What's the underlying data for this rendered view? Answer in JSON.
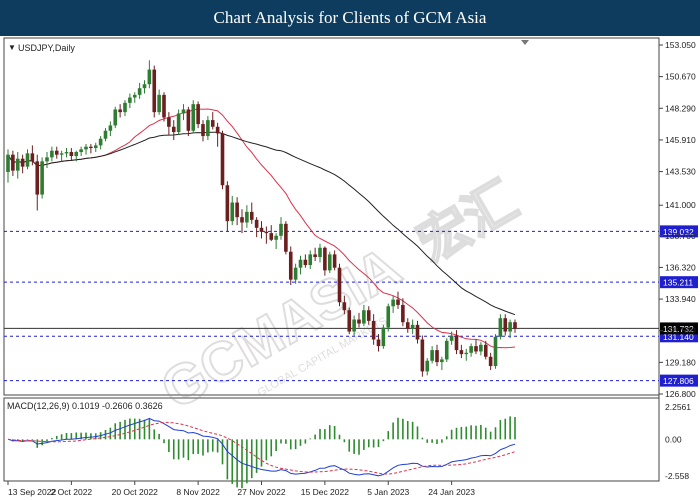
{
  "banner": {
    "title": "Chart Analysis for Clients of GCM Asia"
  },
  "chart": {
    "symbol_label": "USDJPY,Daily",
    "watermark_main": "GCMASIA",
    "watermark_cn": "宏汇",
    "watermark_sub": "GLOBAL CAPITAL MARKETS",
    "price_ticks": [
      "153.050",
      "150.670",
      "148.290",
      "145.910",
      "143.530",
      "141.000",
      "138.700",
      "136.320",
      "133.940",
      "131.560",
      "129.180",
      "126.800"
    ],
    "level_lines": [
      {
        "label": "139.032",
        "value": 139.032,
        "style": "dashed"
      },
      {
        "label": "135.211",
        "value": 135.211,
        "style": "dashed"
      },
      {
        "label": "131.140",
        "value": 131.14,
        "style": "dashed"
      },
      {
        "label": "127.806",
        "value": 127.806,
        "style": "dashed"
      },
      {
        "label": "131.732",
        "value": 131.732,
        "style": "solid"
      }
    ],
    "current_price": "131.732",
    "macd_label": "MACD(12,26,9) 0.1019 -0.2606 0.3626",
    "macd_ticks": [
      "2.2561",
      "0.00",
      "-2.558"
    ],
    "date_labels": [
      "13 Sep 2022",
      "2 Oct 2022",
      "20 Oct 2022",
      "8 Nov 2022",
      "27 Nov 2022",
      "15 Dec 2022",
      "5 Jan 2023",
      "24 Jan 2023"
    ],
    "colors": {
      "bull": "#2e7d32",
      "bear": "#6b1f1f",
      "ma_fast": "#e0304a",
      "ma_slow": "#222222",
      "level": "#1f1fd0",
      "macd_line": "#1f3fd8",
      "signal_line": "#e0304a",
      "hist": "#2e8b2e"
    }
  },
  "chart_data": {
    "type": "candlestick",
    "price_ylim": [
      126.8,
      153.05
    ],
    "macd_ylim": [
      -2.558,
      2.2561
    ],
    "candles": [
      [
        143.5,
        145.2,
        142.7,
        144.8
      ],
      [
        144.8,
        145.1,
        143.2,
        143.6
      ],
      [
        143.6,
        145.0,
        143.0,
        144.5
      ],
      [
        144.5,
        144.8,
        143.4,
        143.9
      ],
      [
        143.9,
        145.2,
        143.7,
        144.9
      ],
      [
        144.9,
        145.5,
        144.0,
        144.3
      ],
      [
        144.3,
        144.8,
        140.6,
        141.8
      ],
      [
        141.8,
        144.6,
        141.5,
        144.3
      ],
      [
        144.3,
        145.0,
        143.8,
        144.6
      ],
      [
        144.6,
        145.4,
        144.3,
        145.1
      ],
      [
        145.1,
        145.4,
        144.5,
        144.8
      ],
      [
        144.8,
        145.1,
        144.3,
        144.9
      ],
      [
        144.9,
        145.3,
        144.6,
        145.0
      ],
      [
        145.0,
        145.3,
        144.4,
        144.7
      ],
      [
        144.7,
        145.1,
        144.3,
        145.0
      ],
      [
        145.0,
        145.4,
        144.7,
        145.2
      ],
      [
        145.2,
        145.6,
        144.8,
        145.4
      ],
      [
        145.4,
        145.6,
        144.9,
        145.3
      ],
      [
        145.3,
        145.7,
        145.0,
        145.5
      ],
      [
        145.5,
        146.2,
        145.2,
        146.0
      ],
      [
        146.0,
        146.8,
        145.8,
        146.6
      ],
      [
        146.6,
        147.3,
        146.2,
        147.0
      ],
      [
        147.0,
        148.4,
        146.8,
        148.2
      ],
      [
        148.2,
        148.6,
        147.6,
        148.0
      ],
      [
        148.0,
        148.9,
        147.7,
        148.7
      ],
      [
        148.7,
        149.4,
        148.3,
        149.1
      ],
      [
        149.1,
        149.5,
        148.7,
        149.3
      ],
      [
        149.3,
        150.2,
        149.0,
        149.8
      ],
      [
        149.8,
        150.4,
        149.4,
        150.1
      ],
      [
        150.1,
        151.9,
        149.8,
        151.2
      ],
      [
        151.2,
        151.5,
        147.6,
        148.0
      ],
      [
        148.0,
        149.7,
        147.8,
        149.3
      ],
      [
        149.3,
        149.5,
        147.3,
        147.6
      ],
      [
        147.6,
        148.0,
        146.3,
        146.9
      ],
      [
        146.9,
        147.4,
        145.9,
        146.5
      ],
      [
        146.5,
        148.2,
        146.3,
        147.9
      ],
      [
        147.9,
        148.6,
        147.4,
        148.2
      ],
      [
        148.2,
        148.4,
        146.2,
        146.6
      ],
      [
        146.6,
        148.9,
        146.4,
        148.6
      ],
      [
        148.6,
        148.8,
        146.8,
        147.1
      ],
      [
        147.1,
        147.4,
        145.8,
        146.2
      ],
      [
        146.2,
        147.7,
        145.9,
        147.4
      ],
      [
        147.4,
        148.0,
        146.7,
        146.9
      ],
      [
        146.9,
        147.2,
        145.4,
        146.4
      ],
      [
        146.4,
        146.6,
        142.2,
        142.5
      ],
      [
        142.5,
        142.8,
        139.0,
        139.8
      ],
      [
        139.8,
        141.7,
        139.5,
        141.2
      ],
      [
        141.2,
        141.6,
        139.5,
        140.1
      ],
      [
        140.1,
        140.7,
        138.9,
        139.7
      ],
      [
        139.7,
        141.0,
        139.3,
        140.5
      ],
      [
        140.5,
        141.2,
        139.6,
        139.9
      ],
      [
        139.9,
        140.1,
        138.6,
        139.3
      ],
      [
        139.3,
        139.8,
        138.5,
        139.0
      ],
      [
        139.0,
        139.4,
        138.1,
        138.9
      ],
      [
        138.9,
        139.5,
        138.3,
        138.4
      ],
      [
        138.4,
        138.9,
        137.7,
        138.7
      ],
      [
        138.7,
        140.1,
        138.4,
        139.6
      ],
      [
        139.6,
        139.8,
        137.3,
        137.5
      ],
      [
        137.5,
        137.9,
        135.0,
        135.4
      ],
      [
        135.4,
        136.6,
        135.1,
        136.3
      ],
      [
        136.3,
        137.2,
        135.8,
        136.9
      ],
      [
        136.9,
        137.3,
        136.3,
        136.5
      ],
      [
        136.5,
        137.6,
        136.2,
        137.3
      ],
      [
        137.3,
        137.8,
        136.8,
        137.1
      ],
      [
        137.1,
        138.1,
        136.7,
        137.8
      ],
      [
        137.8,
        137.9,
        135.7,
        136.1
      ],
      [
        136.1,
        137.5,
        135.9,
        137.3
      ],
      [
        137.3,
        137.6,
        136.1,
        136.3
      ],
      [
        136.3,
        136.6,
        133.4,
        133.7
      ],
      [
        133.7,
        134.2,
        132.8,
        133.1
      ],
      [
        133.1,
        133.3,
        131.3,
        131.5
      ],
      [
        131.5,
        132.7,
        131.2,
        132.4
      ],
      [
        132.4,
        132.9,
        131.8,
        132.1
      ],
      [
        132.1,
        133.5,
        131.9,
        133.1
      ],
      [
        133.1,
        133.4,
        132.0,
        132.3
      ],
      [
        132.3,
        132.8,
        130.5,
        130.9
      ],
      [
        130.9,
        131.3,
        130.0,
        130.4
      ],
      [
        130.4,
        132.0,
        130.2,
        131.8
      ],
      [
        131.8,
        133.6,
        131.5,
        133.4
      ],
      [
        133.4,
        134.2,
        132.9,
        133.9
      ],
      [
        133.9,
        134.5,
        133.2,
        133.5
      ],
      [
        133.5,
        134.0,
        131.9,
        132.2
      ],
      [
        132.2,
        132.5,
        131.4,
        131.7
      ],
      [
        131.7,
        132.4,
        131.3,
        132.0
      ],
      [
        132.0,
        132.3,
        130.6,
        130.9
      ],
      [
        130.9,
        131.2,
        128.1,
        128.5
      ],
      [
        128.5,
        129.5,
        128.2,
        129.3
      ],
      [
        129.3,
        130.4,
        129.1,
        130.1
      ],
      [
        130.1,
        130.5,
        128.9,
        129.2
      ],
      [
        129.2,
        129.6,
        128.6,
        129.4
      ],
      [
        129.4,
        131.0,
        129.2,
        130.8
      ],
      [
        130.8,
        131.5,
        130.5,
        131.2
      ],
      [
        131.2,
        131.6,
        129.8,
        130.1
      ],
      [
        130.1,
        130.5,
        129.5,
        129.8
      ],
      [
        129.8,
        130.2,
        129.3,
        129.9
      ],
      [
        129.9,
        130.6,
        129.6,
        130.4
      ],
      [
        130.4,
        130.9,
        129.8,
        130.0
      ],
      [
        130.0,
        130.7,
        129.7,
        130.5
      ],
      [
        130.5,
        130.8,
        129.4,
        129.6
      ],
      [
        129.6,
        129.9,
        128.6,
        128.9
      ],
      [
        128.9,
        131.3,
        128.7,
        131.1
      ],
      [
        131.1,
        132.8,
        130.9,
        132.5
      ],
      [
        132.5,
        132.8,
        131.2,
        131.5
      ],
      [
        131.5,
        132.4,
        131.0,
        132.2
      ],
      [
        132.2,
        132.4,
        131.4,
        131.7
      ]
    ]
  }
}
